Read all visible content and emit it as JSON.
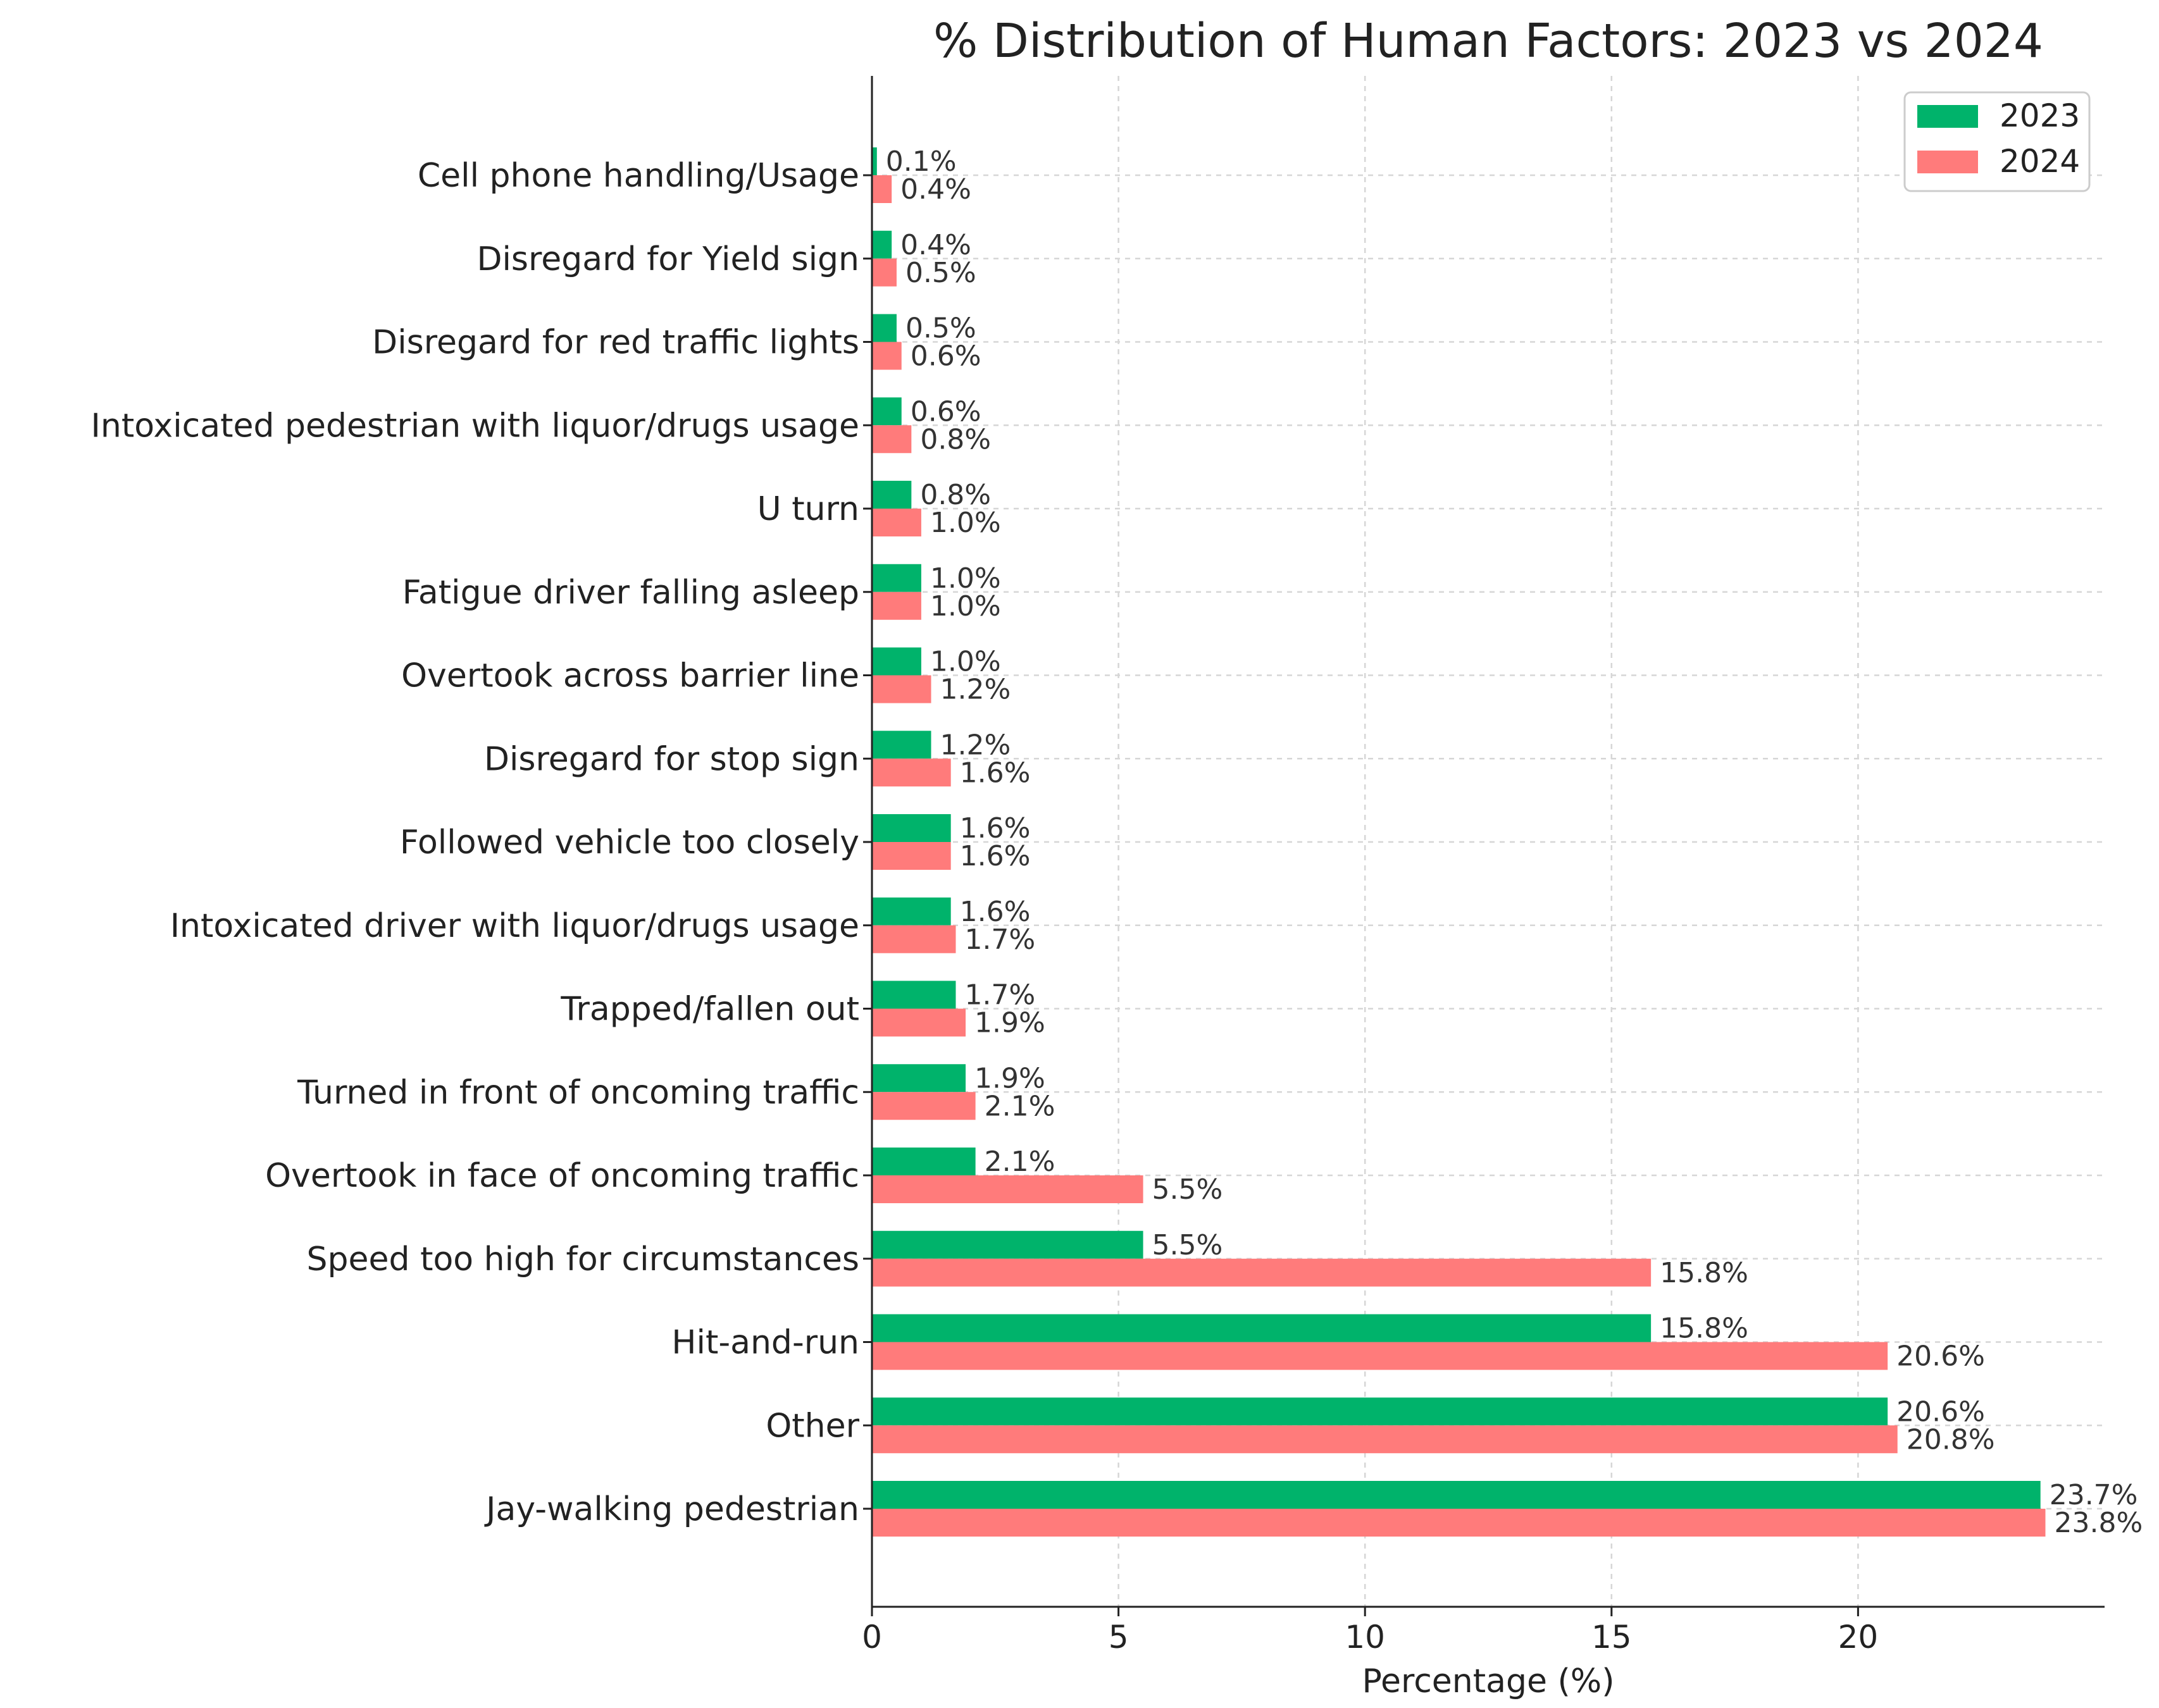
{
  "chart_data": {
    "type": "bar",
    "orientation": "horizontal",
    "title": "% Distribution of Human Factors: 2023 vs 2024",
    "xlabel": "Percentage (%)",
    "ylabel": "",
    "xlim": [
      0,
      25
    ],
    "xticks": [
      0,
      5,
      10,
      15,
      20
    ],
    "grid": true,
    "legend_position": "top-right",
    "categories": [
      "Jay-walking pedestrian",
      "Other",
      "Hit-and-run",
      "Speed too high for circumstances",
      "Overtook in face of oncoming traffic",
      "Turned in front of oncoming traffic",
      "Trapped/fallen out",
      "Intoxicated driver with liquor/drugs usage",
      "Followed vehicle too closely",
      "Disregard for stop sign",
      "Overtook across barrier line",
      "Fatigue driver falling asleep",
      "U turn",
      "Intoxicated pedestrian with liquor/drugs usage",
      "Disregard for red traffic lights",
      "Disregard for Yield sign",
      "Cell phone handling/Usage"
    ],
    "series": [
      {
        "name": "2023",
        "color": "#00b36b",
        "values": [
          23.7,
          20.6,
          15.8,
          5.5,
          2.1,
          1.9,
          1.7,
          1.6,
          1.6,
          1.2,
          1.0,
          1.0,
          0.8,
          0.6,
          0.5,
          0.4,
          0.1
        ]
      },
      {
        "name": "2024",
        "color": "#ff7b7b",
        "values": [
          23.8,
          20.8,
          20.6,
          15.8,
          5.5,
          2.1,
          1.9,
          1.7,
          1.6,
          1.6,
          1.2,
          1.0,
          1.0,
          0.8,
          0.6,
          0.5,
          0.4
        ]
      }
    ]
  }
}
